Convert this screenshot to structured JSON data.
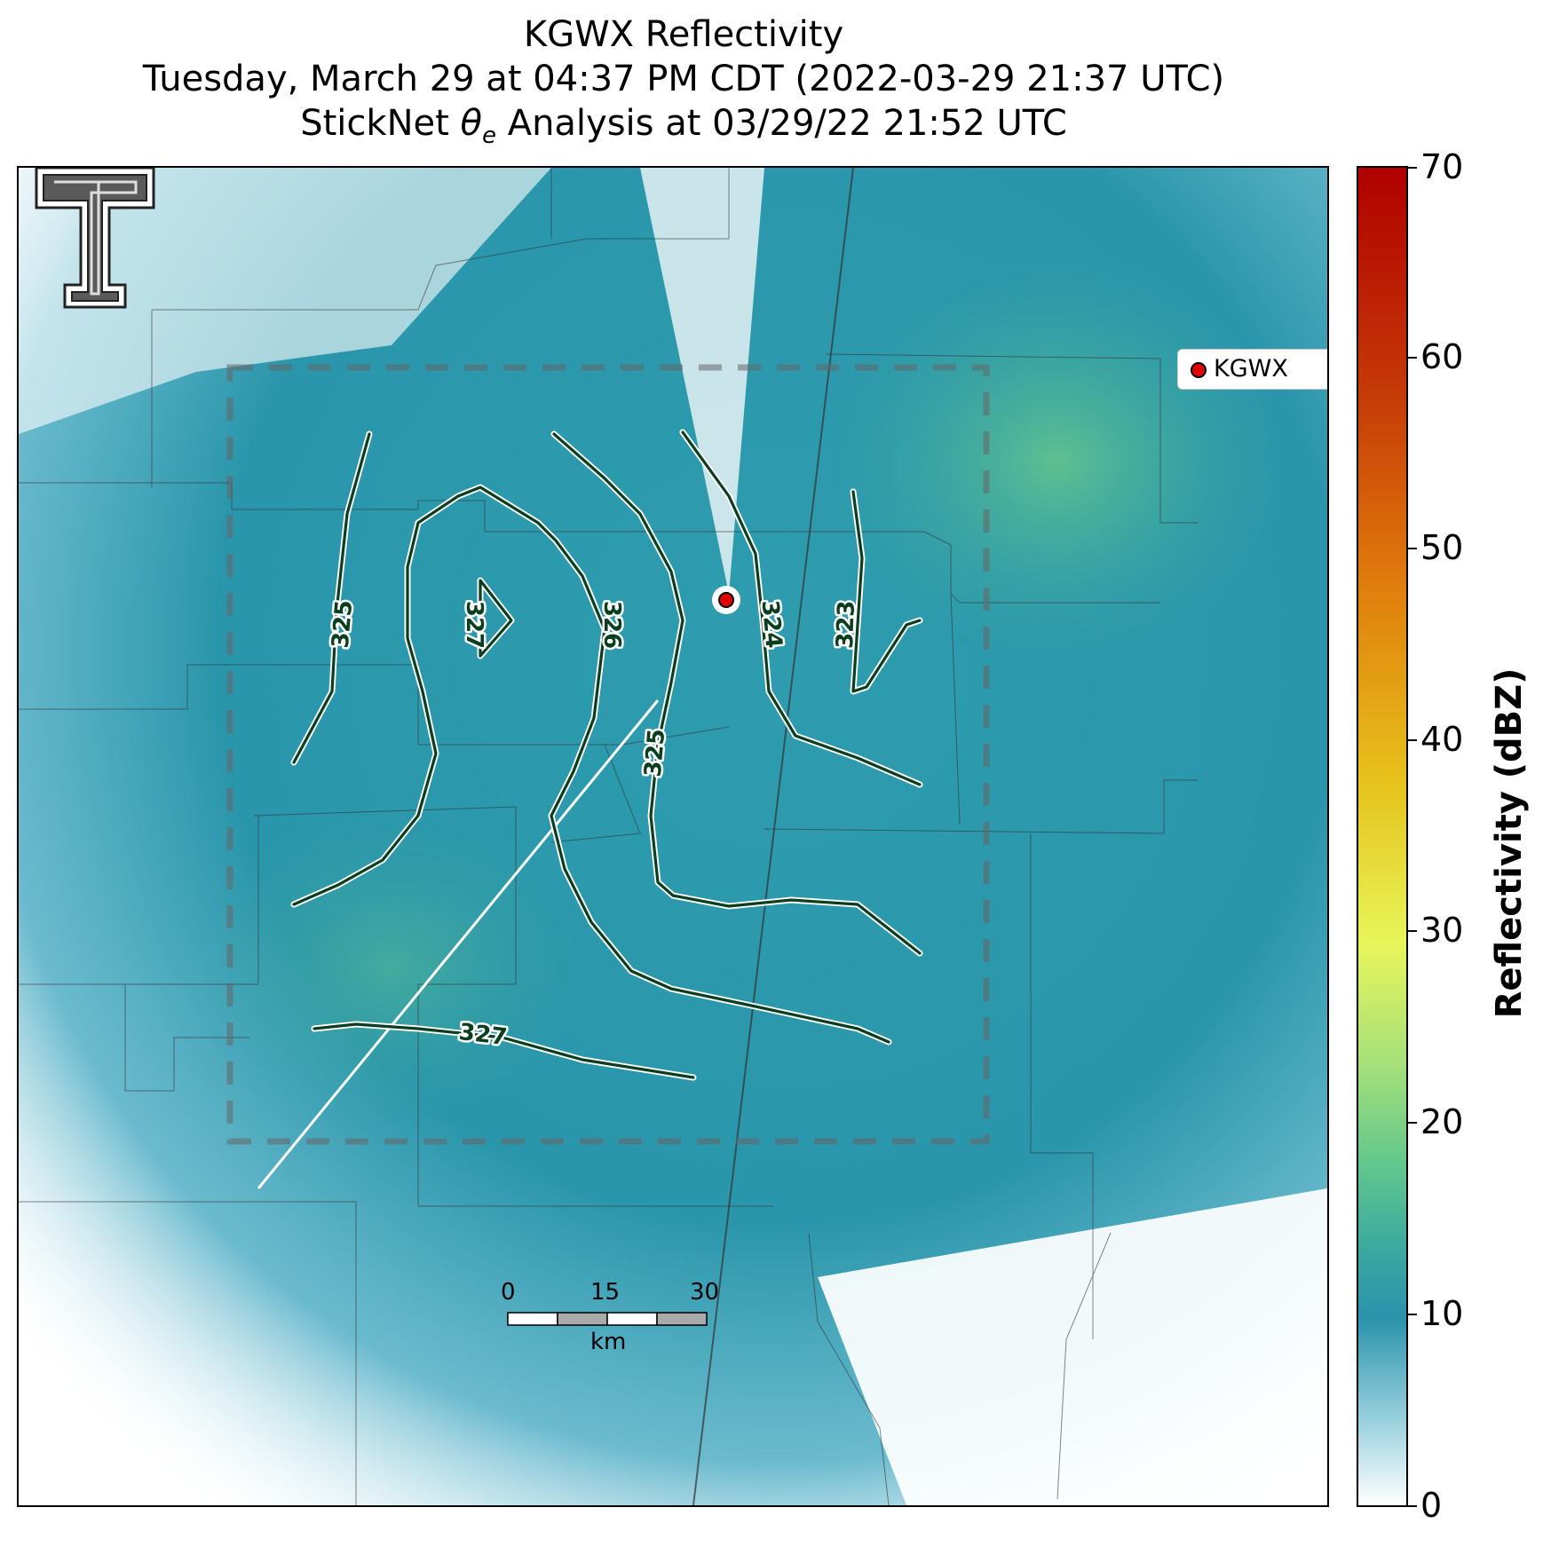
{
  "title": {
    "line1": "KGWX Reflectivity",
    "line2": "Tuesday, March 29 at 04:37 PM CDT (2022-03-29 21:37 UTC)",
    "line3": "StickNet θe Analysis at 03/29/22 21:52 UTC"
  },
  "legend": {
    "label": "KGWX"
  },
  "colorbar": {
    "label": "Reflectivity (dBZ)",
    "ticks": [
      "0",
      "10",
      "20",
      "30",
      "40",
      "50",
      "60",
      "70"
    ]
  },
  "contours": {
    "labels": [
      "325",
      "327",
      "326",
      "325",
      "324",
      "323",
      "327"
    ],
    "color": "#0b3d1f"
  },
  "scale_bar": {
    "ticks": [
      "0",
      "15",
      "30"
    ],
    "unit": "km"
  },
  "colors": {
    "radar_site": "#e00000",
    "reflectivity_base": "#2a93ac"
  }
}
